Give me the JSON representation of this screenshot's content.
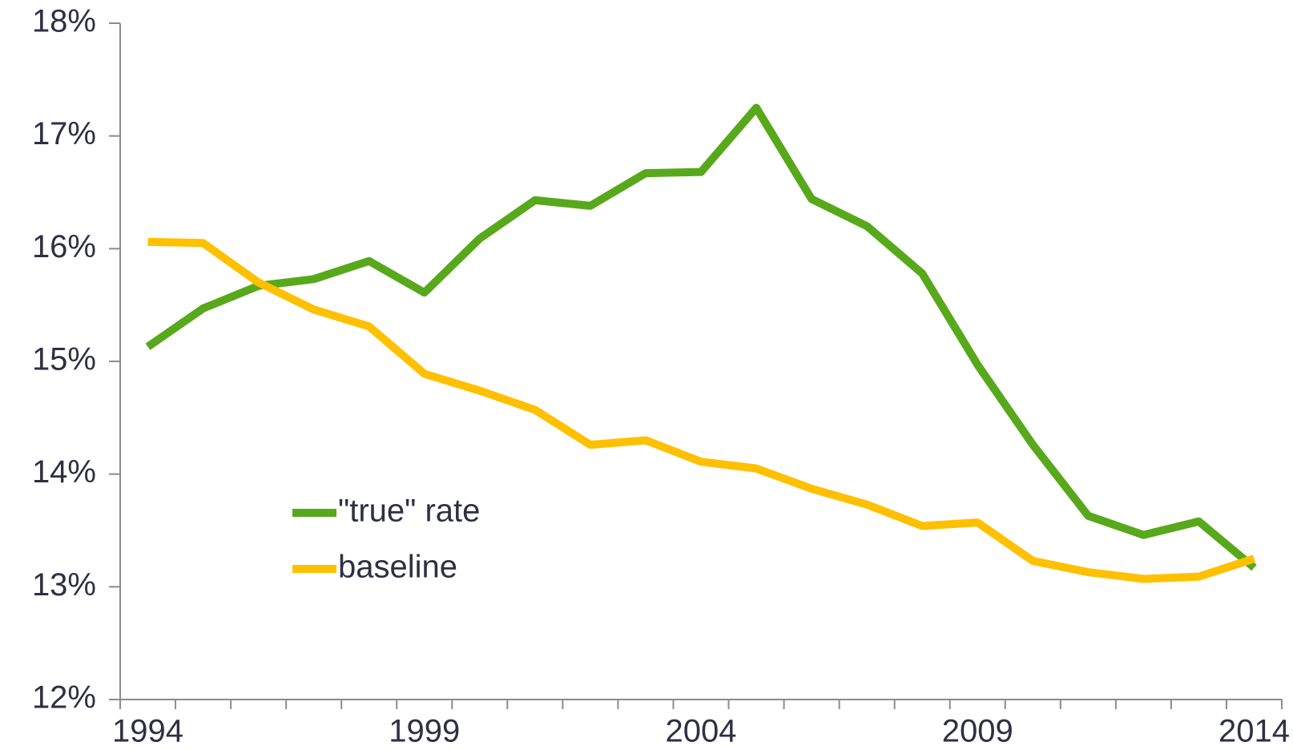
{
  "chart_data": {
    "type": "line",
    "categories": [
      "1994",
      null,
      null,
      null,
      null,
      "1999",
      null,
      null,
      null,
      null,
      "2004",
      null,
      null,
      null,
      null,
      "2009",
      null,
      null,
      null,
      null,
      "2014"
    ],
    "series": [
      {
        "name": "\"true\" rate",
        "color": "#58a81c",
        "values": [
          15.13,
          15.47,
          15.67,
          15.73,
          15.89,
          15.61,
          16.09,
          16.43,
          16.38,
          16.67,
          16.68,
          17.25,
          16.44,
          16.2,
          15.78,
          14.97,
          14.26,
          13.63,
          13.46,
          13.58,
          13.17
        ]
      },
      {
        "name": "baseline",
        "color": "#ffc000",
        "values": [
          16.06,
          16.05,
          15.7,
          15.46,
          15.31,
          14.89,
          14.74,
          14.57,
          14.26,
          14.3,
          14.11,
          14.05,
          13.87,
          13.73,
          13.54,
          13.57,
          13.23,
          13.13,
          13.07,
          13.09,
          13.25
        ]
      }
    ],
    "ylim": [
      12,
      18
    ],
    "yticks": [
      {
        "value": 12,
        "label": "12%"
      },
      {
        "value": 13,
        "label": "13%"
      },
      {
        "value": 14,
        "label": "14%"
      },
      {
        "value": 15,
        "label": "15%"
      },
      {
        "value": 16,
        "label": "16%"
      },
      {
        "value": 17,
        "label": "17%"
      },
      {
        "value": 18,
        "label": "18%"
      }
    ],
    "legend": "lower-left"
  }
}
